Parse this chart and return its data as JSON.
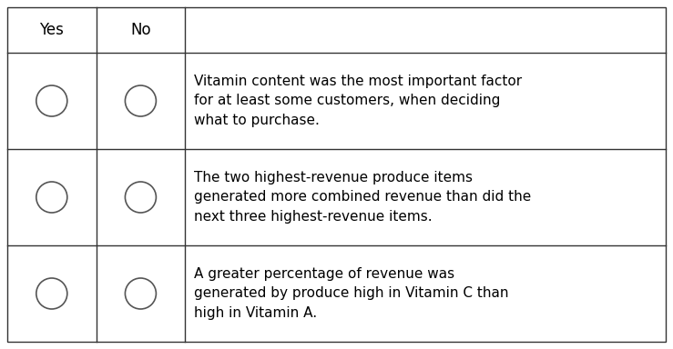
{
  "header": [
    "Yes",
    "No",
    ""
  ],
  "options": [
    "Vitamin content was the most important factor\nfor at least some customers, when deciding\nwhat to purchase.",
    "The two highest-revenue produce items\ngenerated more combined revenue than did the\nnext three highest-revenue items.",
    "A greater percentage of revenue was\ngenerated by produce high in Vitamin C than\nhigh in Vitamin A."
  ],
  "bg_color": "#ffffff",
  "border_color": "#333333",
  "text_color": "#000000",
  "circle_color": "#555555",
  "header_fontsize": 12,
  "body_fontsize": 11,
  "fig_width": 7.39,
  "fig_height": 3.84,
  "dpi": 100
}
